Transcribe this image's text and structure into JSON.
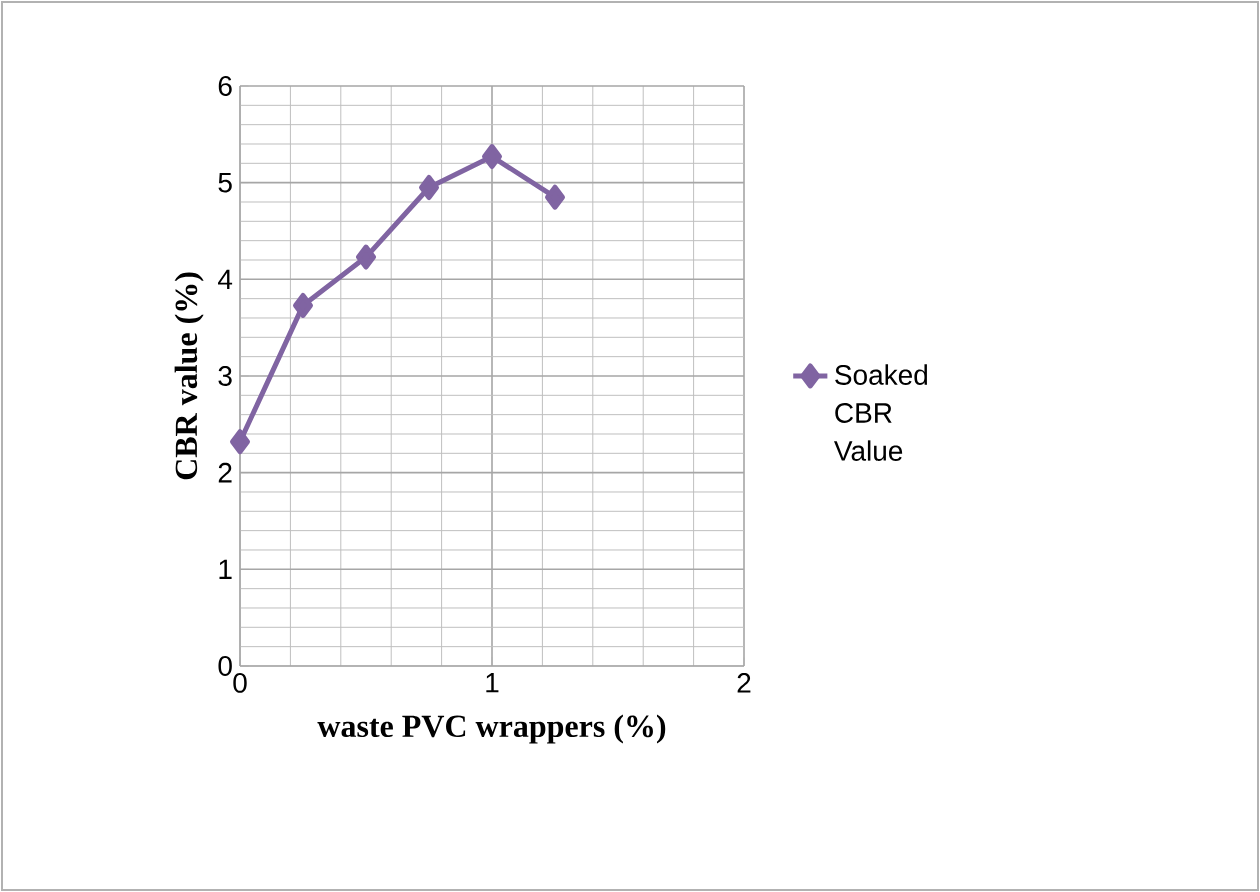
{
  "chart_data": {
    "type": "line",
    "xlabel": "waste PVC wrappers (%)",
    "ylabel": "CBR value (%)",
    "x": [
      0,
      0.25,
      0.5,
      0.75,
      1.0,
      1.25
    ],
    "series": [
      {
        "name": "Soaked CBR Value",
        "color": "#8064a2",
        "values": [
          2.32,
          3.73,
          4.23,
          4.95,
          5.27,
          4.85
        ]
      }
    ],
    "xlim": [
      0,
      2
    ],
    "ylim": [
      0,
      6
    ],
    "xticks": [
      0,
      1,
      2
    ],
    "yticks": [
      0,
      1,
      2,
      3,
      4,
      5,
      6
    ],
    "grid": true,
    "legend": "right",
    "marker": "diamond",
    "line_style": "solid"
  }
}
